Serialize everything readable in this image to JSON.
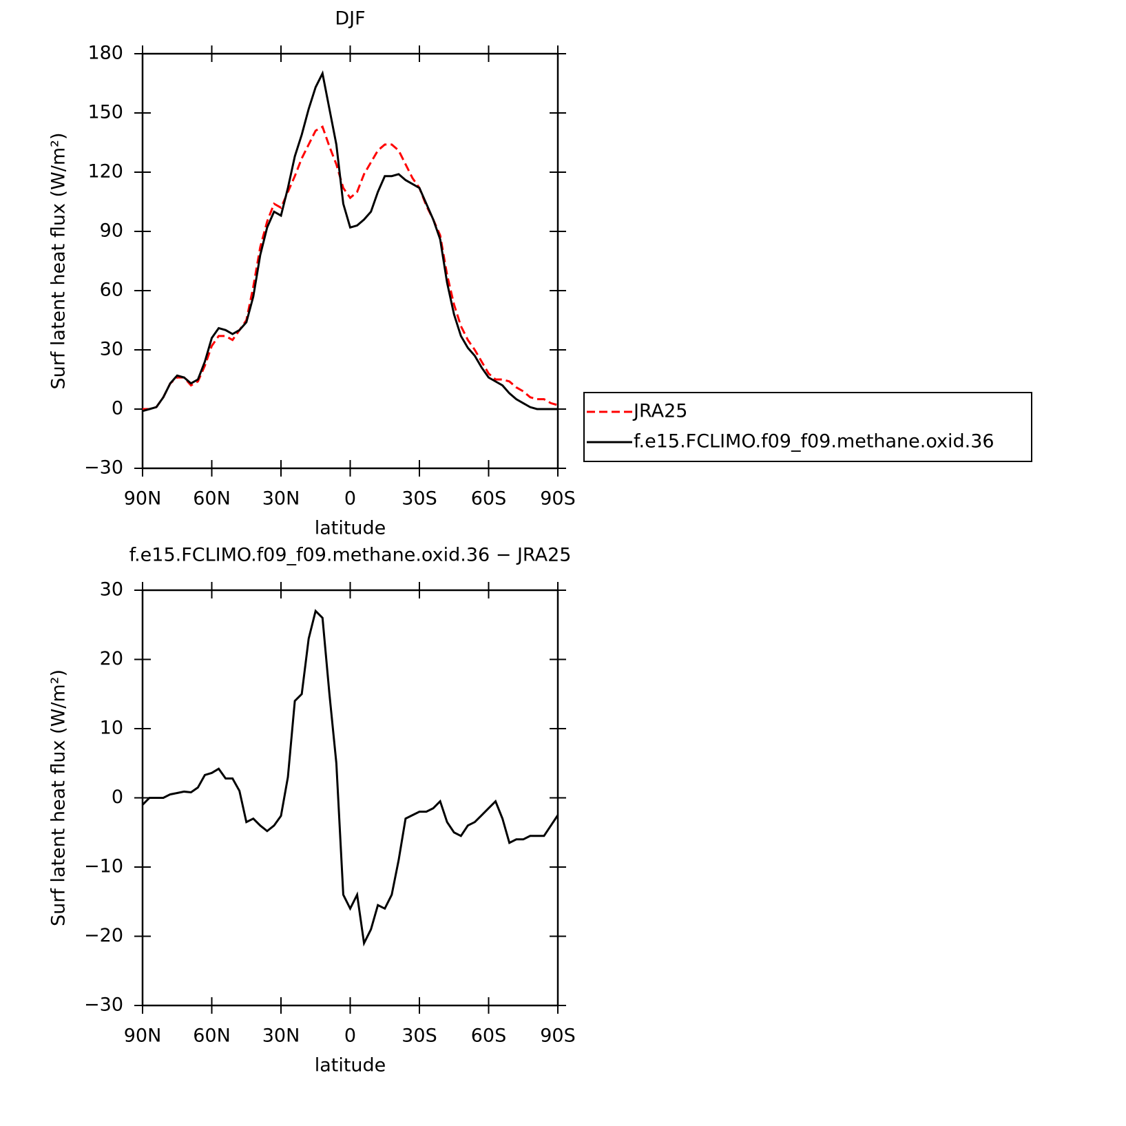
{
  "chart_data": [
    {
      "type": "line",
      "title": "DJF",
      "xlabel": "latitude",
      "ylabel": "Surf latent heat flux (W/m²)",
      "x": [
        90,
        87,
        84,
        81,
        78,
        75,
        72,
        69,
        66,
        63,
        60,
        57,
        54,
        51,
        48,
        45,
        42,
        39,
        36,
        33,
        30,
        27,
        24,
        21,
        18,
        15,
        12,
        9,
        6,
        3,
        0,
        -3,
        -6,
        -9,
        -12,
        -15,
        -18,
        -21,
        -24,
        -27,
        -30,
        -33,
        -36,
        -39,
        -42,
        -45,
        -48,
        -51,
        -54,
        -57,
        -60,
        -63,
        -66,
        -69,
        -72,
        -75,
        -78,
        -81,
        -84,
        -87,
        -90
      ],
      "xlim": [
        90,
        -90
      ],
      "xticks": [
        {
          "value": 90,
          "label": "90N"
        },
        {
          "value": 60,
          "label": "60N"
        },
        {
          "value": 30,
          "label": "30N"
        },
        0,
        {
          "value": -30,
          "label": "30S"
        },
        {
          "value": -60,
          "label": "60S"
        },
        {
          "value": -90,
          "label": "90S"
        }
      ],
      "ylim": [
        -30,
        180
      ],
      "yticks": [
        {
          "value": -30,
          "label": "−30"
        },
        0,
        30,
        60,
        90,
        120,
        150,
        180
      ],
      "legend": "right",
      "series": [
        {
          "name": "JRA25",
          "color": "#ff0000",
          "line_style": "dashed",
          "values": [
            0,
            0,
            1,
            6,
            13,
            16,
            16,
            12,
            14,
            22,
            32,
            37,
            37,
            35,
            40,
            45,
            62,
            82,
            95,
            104,
            102,
            110,
            118,
            127,
            134,
            141,
            143,
            133,
            124,
            112,
            107,
            110,
            119,
            125,
            131,
            134,
            134,
            131,
            124,
            117,
            112,
            103,
            96,
            88,
            68,
            53,
            42,
            35,
            30,
            24,
            18,
            15,
            15,
            14,
            11,
            9,
            6,
            5,
            5,
            3,
            2
          ]
        },
        {
          "name": "f.e15.FCLIMO.f09_f09.methane.oxid.36",
          "color": "#000000",
          "line_style": "solid",
          "values": [
            -1,
            0,
            1,
            6,
            13,
            17,
            16,
            13,
            15,
            24,
            36,
            41,
            40,
            38,
            40,
            44,
            57,
            78,
            92,
            100,
            98,
            112,
            128,
            139,
            152,
            163,
            170,
            152,
            134,
            104,
            92,
            93,
            96,
            100,
            110,
            118,
            118,
            119,
            116,
            114,
            112,
            104,
            96,
            86,
            64,
            48,
            37,
            31,
            27,
            21,
            16,
            14,
            12,
            8,
            5,
            3,
            1,
            0,
            0,
            0,
            0
          ]
        }
      ]
    },
    {
      "type": "line",
      "title": "f.e15.FCLIMO.f09_f09.methane.oxid.36 − JRA25",
      "xlabel": "latitude",
      "ylabel": "Surf latent heat flux (W/m²)",
      "x": [
        90,
        87,
        84,
        81,
        78,
        75,
        72,
        69,
        66,
        63,
        60,
        57,
        54,
        51,
        48,
        45,
        42,
        39,
        36,
        33,
        30,
        27,
        24,
        21,
        18,
        15,
        12,
        9,
        6,
        3,
        0,
        -3,
        -6,
        -9,
        -12,
        -15,
        -18,
        -21,
        -24,
        -27,
        -30,
        -33,
        -36,
        -39,
        -42,
        -45,
        -48,
        -51,
        -54,
        -57,
        -60,
        -63,
        -66,
        -69,
        -72,
        -75,
        -78,
        -81,
        -84,
        -87,
        -90
      ],
      "xlim": [
        90,
        -90
      ],
      "xticks": [
        {
          "value": 90,
          "label": "90N"
        },
        {
          "value": 60,
          "label": "60N"
        },
        {
          "value": 30,
          "label": "30N"
        },
        0,
        {
          "value": -30,
          "label": "30S"
        },
        {
          "value": -60,
          "label": "60S"
        },
        {
          "value": -90,
          "label": "90S"
        }
      ],
      "ylim": [
        -30,
        30
      ],
      "yticks": [
        {
          "value": -30,
          "label": "−30"
        },
        {
          "value": -20,
          "label": "−20"
        },
        {
          "value": -10,
          "label": "−10"
        },
        0,
        10,
        20,
        30
      ],
      "series": [
        {
          "color": "#000000",
          "line_style": "solid",
          "values": [
            -1,
            0,
            0,
            0,
            0.5,
            0.7,
            0.9,
            0.8,
            1.5,
            3.3,
            3.6,
            4.2,
            2.8,
            2.8,
            1,
            -3.5,
            -3,
            -4,
            -4.8,
            -4,
            -2.6,
            3,
            14,
            15,
            23,
            27,
            26,
            15,
            5,
            -14,
            -16,
            -14,
            -21,
            -19,
            -15.5,
            -16,
            -14,
            -9,
            -3,
            -2.5,
            -2,
            -2,
            -1.5,
            -0.5,
            -3.5,
            -5,
            -5.5,
            -4,
            -3.5,
            -2.5,
            -1.5,
            -0.5,
            -3,
            -6.5,
            -6,
            -6,
            -5.5,
            -5.5,
            -5.5,
            -4,
            -2.5
          ]
        }
      ]
    }
  ]
}
